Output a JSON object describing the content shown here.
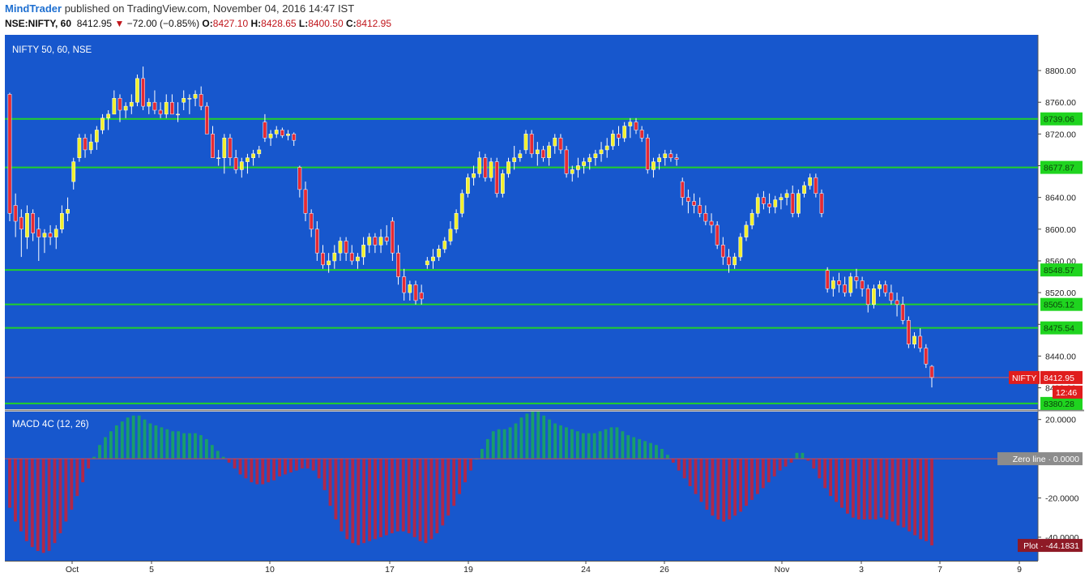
{
  "header": {
    "author": "MindTrader",
    "published_text": " published on TradingView.com, November 04, 2016 14:47 IST",
    "symbol": "NSE:NIFTY, 60",
    "last": "8412.95",
    "change": "−72.00 (−0.85%)",
    "o_label": "O:",
    "o_value": "8427.10",
    "h_label": "H:",
    "h_value": "8428.65",
    "l_label": "L:",
    "l_value": "8400.50",
    "c_label": "C:",
    "c_value": "8412.95"
  },
  "colors": {
    "panel_bg": "#1757cd",
    "bull": "#f2f02e",
    "bear": "#e52a34",
    "level_line": "#21d12a",
    "level_tag_bg": "#1fd41f",
    "price_tag_bg": "#e01d1d",
    "macd_pos": "#1a9e6a",
    "macd_neg": "#b0284a",
    "zero_line": "#d04a55"
  },
  "chart_data": [
    {
      "type": "candlestick",
      "title": "NIFTY 50, 60, NSE",
      "x_ticks": [
        "Oct",
        "5",
        "10",
        "17",
        "19",
        "24",
        "26",
        "Nov",
        "3",
        "7",
        "9"
      ],
      "y_ticks": [
        "8800.00",
        "8760.00",
        "8720.00",
        "8680.00",
        "8640.00",
        "8600.00",
        "8560.00",
        "8520.00",
        "8480.00",
        "8440.00",
        "8400.00"
      ],
      "ylim": [
        8373,
        8845
      ],
      "levels": [
        {
          "label": "8739.06",
          "value": 8739.06
        },
        {
          "label": "8677.87",
          "value": 8677.87
        },
        {
          "label": "8548.57",
          "value": 8548.57
        },
        {
          "label": "8505.12",
          "value": 8505.12
        },
        {
          "label": "8475.54",
          "value": 8475.54
        },
        {
          "label": "8380.28",
          "value": 8380.28
        }
      ],
      "last_price": {
        "name": "NIFTY",
        "value": 8412.95,
        "label": "8412.95",
        "time_label": "12:46"
      },
      "candles": [
        [
          8770,
          8772,
          8610,
          8620
        ],
        [
          8630,
          8645,
          8590,
          8610
        ],
        [
          8615,
          8625,
          8565,
          8600
        ],
        [
          8590,
          8630,
          8575,
          8620
        ],
        [
          8620,
          8625,
          8585,
          8595
        ],
        [
          8600,
          8615,
          8560,
          8590
        ],
        [
          8590,
          8600,
          8570,
          8595
        ],
        [
          8595,
          8605,
          8580,
          8590
        ],
        [
          8590,
          8605,
          8575,
          8600
        ],
        [
          8600,
          8630,
          8595,
          8620
        ],
        [
          8620,
          8640,
          8610,
          8625
        ],
        [
          8660,
          8690,
          8650,
          8685
        ],
        [
          8690,
          8720,
          8685,
          8715
        ],
        [
          8715,
          8720,
          8690,
          8700
        ],
        [
          8700,
          8720,
          8695,
          8710
        ],
        [
          8710,
          8730,
          8700,
          8725
        ],
        [
          8725,
          8745,
          8720,
          8740
        ],
        [
          8740,
          8750,
          8725,
          8745
        ],
        [
          8745,
          8775,
          8745,
          8765
        ],
        [
          8765,
          8770,
          8735,
          8750
        ],
        [
          8750,
          8760,
          8740,
          8755
        ],
        [
          8755,
          8770,
          8745,
          8760
        ],
        [
          8760,
          8795,
          8755,
          8790
        ],
        [
          8790,
          8805,
          8750,
          8755
        ],
        [
          8755,
          8765,
          8745,
          8760
        ],
        [
          8760,
          8775,
          8745,
          8750
        ],
        [
          8750,
          8760,
          8740,
          8745
        ],
        [
          8745,
          8770,
          8740,
          8760
        ],
        [
          8760,
          8770,
          8745,
          8745
        ],
        [
          8745,
          8760,
          8735,
          8745
        ],
        [
          8760,
          8775,
          8750,
          8765
        ],
        [
          8765,
          8770,
          8745,
          8765
        ],
        [
          8765,
          8775,
          8755,
          8770
        ],
        [
          8770,
          8780,
          8750,
          8755
        ],
        [
          8755,
          8760,
          8720,
          8720
        ],
        [
          8720,
          8730,
          8690,
          8690
        ],
        [
          8690,
          8700,
          8680,
          8690
        ],
        [
          8690,
          8720,
          8670,
          8715
        ],
        [
          8715,
          8720,
          8680,
          8690
        ],
        [
          8690,
          8700,
          8670,
          8675
        ],
        [
          8675,
          8690,
          8665,
          8685
        ],
        [
          8685,
          8695,
          8670,
          8690
        ],
        [
          8690,
          8700,
          8680,
          8695
        ],
        [
          8695,
          8705,
          8690,
          8700
        ],
        [
          8735,
          8745,
          8710,
          8715
        ],
        [
          8715,
          8725,
          8705,
          8720
        ],
        [
          8720,
          8730,
          8715,
          8725
        ],
        [
          8725,
          8728,
          8715,
          8718
        ],
        [
          8718,
          8725,
          8712,
          8720
        ],
        [
          8720,
          8722,
          8705,
          8712
        ],
        [
          8678,
          8680,
          8640,
          8650
        ],
        [
          8650,
          8660,
          8610,
          8620
        ],
        [
          8620,
          8625,
          8590,
          8600
        ],
        [
          8600,
          8610,
          8560,
          8570
        ],
        [
          8570,
          8580,
          8550,
          8555
        ],
        [
          8555,
          8570,
          8545,
          8560
        ],
        [
          8560,
          8580,
          8550,
          8570
        ],
        [
          8570,
          8590,
          8560,
          8585
        ],
        [
          8585,
          8590,
          8560,
          8570
        ],
        [
          8570,
          8580,
          8555,
          8560
        ],
        [
          8560,
          8570,
          8550,
          8565
        ],
        [
          8565,
          8590,
          8555,
          8580
        ],
        [
          8580,
          8595,
          8570,
          8590
        ],
        [
          8590,
          8595,
          8570,
          8580
        ],
        [
          8580,
          8600,
          8570,
          8590
        ],
        [
          8590,
          8605,
          8580,
          8585
        ],
        [
          8610,
          8615,
          8560,
          8570
        ],
        [
          8570,
          8580,
          8530,
          8540
        ],
        [
          8540,
          8550,
          8510,
          8520
        ],
        [
          8520,
          8535,
          8510,
          8530
        ],
        [
          8530,
          8535,
          8505,
          8510
        ],
        [
          8520,
          8530,
          8505,
          8512
        ],
        [
          8555,
          8565,
          8550,
          8560
        ],
        [
          8560,
          8575,
          8550,
          8565
        ],
        [
          8565,
          8580,
          8560,
          8575
        ],
        [
          8575,
          8590,
          8570,
          8585
        ],
        [
          8585,
          8610,
          8580,
          8600
        ],
        [
          8600,
          8625,
          8595,
          8620
        ],
        [
          8620,
          8650,
          8615,
          8645
        ],
        [
          8645,
          8670,
          8640,
          8665
        ],
        [
          8665,
          8680,
          8655,
          8670
        ],
        [
          8670,
          8698,
          8665,
          8690
        ],
        [
          8690,
          8695,
          8660,
          8665
        ],
        [
          8665,
          8690,
          8660,
          8685
        ],
        [
          8685,
          8690,
          8640,
          8645
        ],
        [
          8645,
          8675,
          8640,
          8670
        ],
        [
          8670,
          8690,
          8665,
          8685
        ],
        [
          8685,
          8705,
          8675,
          8690
        ],
        [
          8690,
          8700,
          8685,
          8695
        ],
        [
          8700,
          8725,
          8695,
          8720
        ],
        [
          8720,
          8725,
          8690,
          8695
        ],
        [
          8695,
          8710,
          8680,
          8700
        ],
        [
          8700,
          8705,
          8685,
          8690
        ],
        [
          8690,
          8710,
          8680,
          8705
        ],
        [
          8705,
          8720,
          8695,
          8715
        ],
        [
          8715,
          8720,
          8695,
          8700
        ],
        [
          8700,
          8705,
          8665,
          8670
        ],
        [
          8670,
          8680,
          8660,
          8675
        ],
        [
          8675,
          8690,
          8665,
          8680
        ],
        [
          8680,
          8690,
          8670,
          8685
        ],
        [
          8685,
          8695,
          8675,
          8690
        ],
        [
          8690,
          8700,
          8680,
          8695
        ],
        [
          8695,
          8710,
          8685,
          8700
        ],
        [
          8700,
          8715,
          8690,
          8705
        ],
        [
          8705,
          8725,
          8700,
          8720
        ],
        [
          8720,
          8730,
          8705,
          8715
        ],
        [
          8715,
          8735,
          8710,
          8730
        ],
        [
          8730,
          8740,
          8715,
          8735
        ],
        [
          8735,
          8740,
          8720,
          8725
        ],
        [
          8725,
          8730,
          8710,
          8715
        ],
        [
          8715,
          8720,
          8670,
          8675
        ],
        [
          8675,
          8690,
          8665,
          8685
        ],
        [
          8685,
          8695,
          8675,
          8690
        ],
        [
          8690,
          8700,
          8680,
          8695
        ],
        [
          8695,
          8700,
          8685,
          8690
        ],
        [
          8690,
          8695,
          8680,
          8688
        ],
        [
          8660,
          8665,
          8630,
          8640
        ],
        [
          8640,
          8650,
          8620,
          8635
        ],
        [
          8635,
          8645,
          8620,
          8630
        ],
        [
          8630,
          8640,
          8615,
          8620
        ],
        [
          8620,
          8630,
          8605,
          8610
        ],
        [
          8610,
          8620,
          8595,
          8605
        ],
        [
          8605,
          8610,
          8575,
          8580
        ],
        [
          8580,
          8590,
          8555,
          8565
        ],
        [
          8565,
          8575,
          8545,
          8555
        ],
        [
          8555,
          8570,
          8550,
          8565
        ],
        [
          8565,
          8595,
          8560,
          8590
        ],
        [
          8590,
          8610,
          8585,
          8605
        ],
        [
          8605,
          8625,
          8600,
          8620
        ],
        [
          8620,
          8645,
          8615,
          8640
        ],
        [
          8640,
          8648,
          8625,
          8632
        ],
        [
          8632,
          8645,
          8620,
          8628
        ],
        [
          8628,
          8642,
          8620,
          8637
        ],
        [
          8637,
          8645,
          8625,
          8640
        ],
        [
          8640,
          8650,
          8630,
          8645
        ],
        [
          8645,
          8655,
          8615,
          8620
        ],
        [
          8620,
          8650,
          8615,
          8645
        ],
        [
          8645,
          8660,
          8640,
          8655
        ],
        [
          8655,
          8670,
          8650,
          8665
        ],
        [
          8665,
          8670,
          8640,
          8645
        ],
        [
          8645,
          8650,
          8615,
          8620
        ],
        [
          8548,
          8552,
          8520,
          8525
        ],
        [
          8525,
          8540,
          8515,
          8535
        ],
        [
          8535,
          8545,
          8520,
          8530
        ],
        [
          8530,
          8540,
          8515,
          8520
        ],
        [
          8520,
          8545,
          8515,
          8540
        ],
        [
          8540,
          8550,
          8525,
          8535
        ],
        [
          8535,
          8540,
          8515,
          8525
        ],
        [
          8525,
          8530,
          8495,
          8505
        ],
        [
          8505,
          8530,
          8500,
          8525
        ],
        [
          8525,
          8535,
          8515,
          8530
        ],
        [
          8530,
          8535,
          8515,
          8520
        ],
        [
          8520,
          8530,
          8505,
          8510
        ],
        [
          8510,
          8520,
          8490,
          8505
        ],
        [
          8505,
          8515,
          8480,
          8485
        ],
        [
          8485,
          8490,
          8450,
          8455
        ],
        [
          8455,
          8470,
          8450,
          8465
        ],
        [
          8465,
          8475,
          8445,
          8450
        ],
        [
          8450,
          8455,
          8425,
          8430
        ],
        [
          8427.1,
          8428.65,
          8400.5,
          8412.95
        ]
      ]
    },
    {
      "type": "bar",
      "title": "MACD 4C (12, 26)",
      "y_ticks": [
        "20.0000",
        "-20.0000",
        "-40.0000"
      ],
      "ylim": [
        -52,
        24
      ],
      "zero_label": "Zero line",
      "zero_value": "0.0000",
      "plot_label": "Plot",
      "plot_value": "-44.1831",
      "values": [
        -25,
        -32,
        -37,
        -42,
        -45,
        -47,
        -48,
        -47,
        -43,
        -38,
        -32,
        -26,
        -19,
        -12,
        -5,
        1,
        7,
        11,
        14,
        17,
        19,
        21,
        22,
        22,
        20,
        18,
        17,
        16,
        15,
        14,
        14,
        13,
        13,
        13,
        12,
        10,
        7,
        4,
        1,
        -2,
        -5,
        -8,
        -10,
        -12,
        -13,
        -13,
        -12,
        -11,
        -9,
        -8,
        -7,
        -6,
        -5,
        -5,
        -6,
        -10,
        -16,
        -24,
        -31,
        -37,
        -41,
        -43,
        -44,
        -43,
        -42,
        -41,
        -40,
        -39,
        -38,
        -37,
        -37,
        -38,
        -40,
        -42,
        -43,
        -41,
        -38,
        -34,
        -29,
        -24,
        -18,
        -12,
        -6,
        0,
        5,
        10,
        14,
        15,
        15,
        16,
        18,
        21,
        23,
        24,
        24,
        22,
        20,
        18,
        17,
        16,
        15,
        14,
        13,
        13,
        13,
        14,
        15,
        16,
        16,
        14,
        12,
        11,
        10,
        9,
        8,
        7,
        5,
        2,
        -2,
        -6,
        -10,
        -14,
        -18,
        -22,
        -26,
        -29,
        -31,
        -32,
        -31,
        -29,
        -27,
        -24,
        -21,
        -18,
        -15,
        -12,
        -9,
        -6,
        -4,
        -2,
        3,
        3,
        -1,
        -5,
        -10,
        -15,
        -19,
        -22,
        -25,
        -28,
        -30,
        -31,
        -31,
        -31,
        -31,
        -30,
        -31,
        -32,
        -34,
        -35,
        -37,
        -39,
        -41,
        -42,
        -44.18
      ]
    }
  ]
}
